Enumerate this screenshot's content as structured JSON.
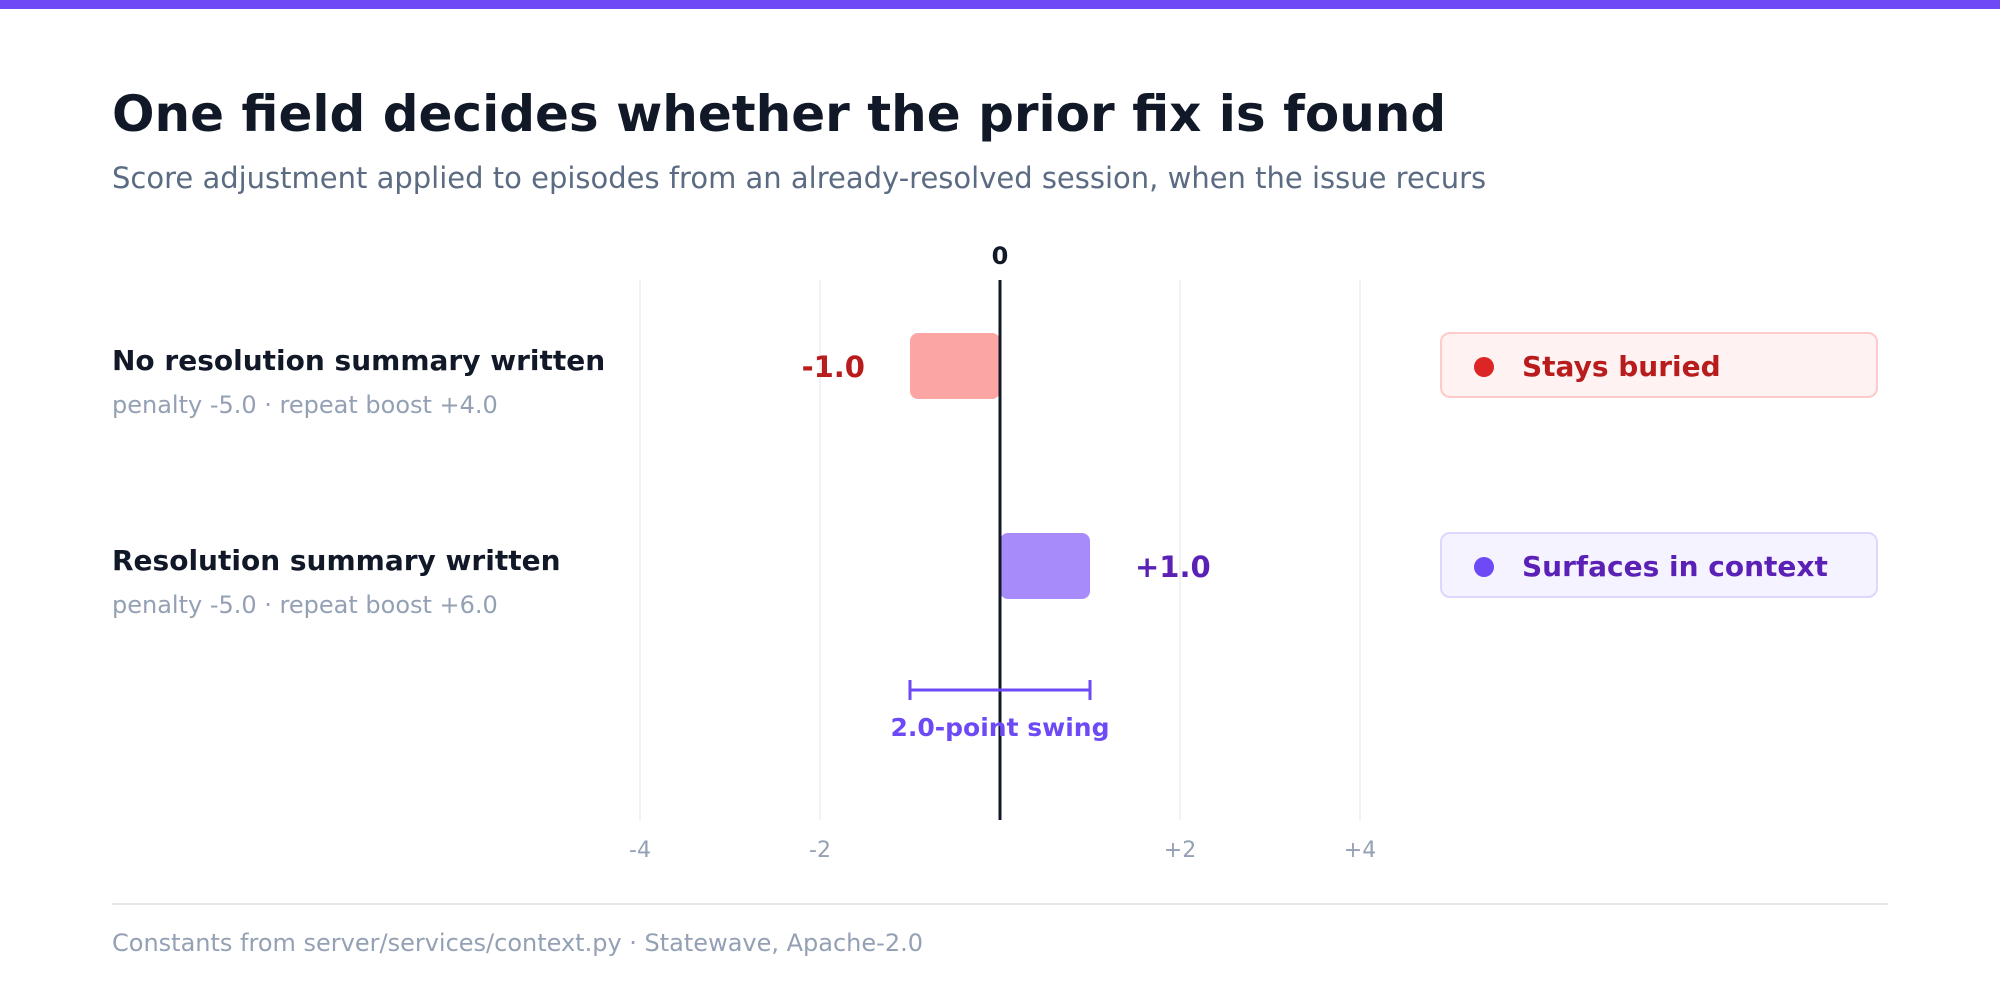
{
  "title": "One field decides whether the prior fix is found",
  "subtitle": "Score adjustment applied to episodes from an already-resolved session, when the issue recurs",
  "footer": "Constants from server/services/context.py · Statewave, Apache-2.0",
  "colors": {
    "accent": "#6d4af5",
    "negative_bar": "#fca5a5",
    "negative_text": "#b91c1c",
    "negative_dot": "#dc2626",
    "negative_box_bg": "#fef2f2",
    "negative_box_border": "#fecaca",
    "positive_bar": "#a78bfa",
    "positive_text": "#5b21b6",
    "positive_dot": "#6d4af5",
    "positive_box_bg": "#f5f3ff",
    "positive_box_border": "#ddd6fe",
    "zero_line": "#111827",
    "grid": "#eceef2",
    "tick_label": "#94a0b4"
  },
  "rows": [
    {
      "label": "No resolution summary written",
      "detail": "penalty -5.0 · repeat boost +4.0",
      "value_label": "-1.0",
      "outcome": "Stays buried"
    },
    {
      "label": "Resolution summary written",
      "detail": "penalty -5.0 · repeat boost +6.0",
      "value_label": "+1.0",
      "outcome": "Surfaces in context"
    }
  ],
  "chart_data": {
    "type": "bar",
    "orientation": "horizontal",
    "categories": [
      "No resolution summary written",
      "Resolution summary written"
    ],
    "values": [
      -1.0,
      1.0
    ],
    "xlim": [
      -4,
      4
    ],
    "x_ticks": [
      -4,
      -2,
      2,
      4
    ],
    "x_tick_labels": [
      "-4",
      "-2",
      "+2",
      "+4"
    ],
    "zero_label": "0",
    "grid": true,
    "annotation": {
      "from": -1.0,
      "to": 1.0,
      "label": "2.0-point swing"
    }
  }
}
